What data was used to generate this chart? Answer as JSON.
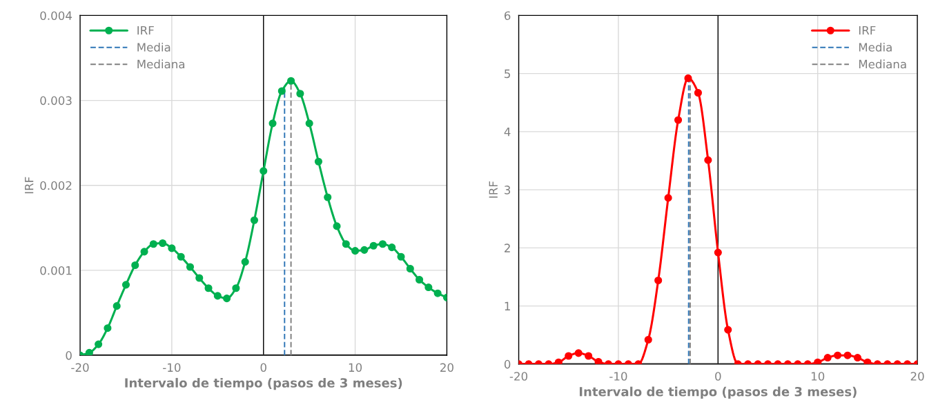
{
  "chart_data": [
    {
      "type": "line",
      "xlabel": "Intervalo de tiempo (pasos de 3 meses)",
      "ylabel": "IRF",
      "xlim": [
        -20,
        20
      ],
      "xticks": [
        -20,
        -10,
        0,
        10,
        20
      ],
      "ylim": [
        0,
        0.004
      ],
      "yticks": [
        0,
        0.001,
        0.002,
        0.003,
        0.004
      ],
      "grid": true,
      "legend": "top left",
      "ref_lines": [
        {
          "axis": "x",
          "value": 0,
          "color": "#000000"
        }
      ],
      "series": [
        {
          "name": "IRF",
          "color": "#00b050",
          "marker": "circle",
          "line_style": "solid",
          "x": [
            -20,
            -19,
            -18,
            -17,
            -16,
            -15,
            -14,
            -13,
            -12,
            -11,
            -10,
            -9,
            -8,
            -7,
            -6,
            -5,
            -4,
            -3,
            -2,
            -1,
            0,
            1,
            2,
            3,
            4,
            5,
            6,
            7,
            8,
            9,
            10,
            11,
            12,
            13,
            14,
            15,
            16,
            17,
            18,
            19,
            20
          ],
          "values": [
            0,
            3e-05,
            0.00013,
            0.00032,
            0.00058,
            0.00083,
            0.00106,
            0.00122,
            0.00131,
            0.00132,
            0.00126,
            0.00116,
            0.00104,
            0.00091,
            0.00079,
            0.0007,
            0.00067,
            0.00079,
            0.0011,
            0.00159,
            0.00217,
            0.00273,
            0.00311,
            0.00323,
            0.00308,
            0.00273,
            0.00228,
            0.00186,
            0.00152,
            0.00131,
            0.00123,
            0.00124,
            0.00129,
            0.00131,
            0.00127,
            0.00116,
            0.00102,
            0.00089,
            0.0008,
            0.00073,
            0.00068
          ]
        },
        {
          "name": "Media",
          "color": "#2e75b6",
          "marker": "none",
          "line_style": "dashed",
          "x": [
            2.3,
            2.3
          ],
          "values": [
            0,
            0.00314
          ]
        },
        {
          "name": "Mediana",
          "color": "#7f7f7f",
          "marker": "none",
          "line_style": "dashed",
          "x": [
            3.0,
            3.0
          ],
          "values": [
            0,
            0.00323
          ]
        }
      ]
    },
    {
      "type": "line",
      "xlabel": "Intervalo de tiempo (pasos de 3 meses)",
      "ylabel": "IRF",
      "xlim": [
        -20,
        20
      ],
      "xticks": [
        -20,
        -10,
        0,
        10,
        20
      ],
      "ylim": [
        0,
        6
      ],
      "yticks": [
        0,
        1,
        2,
        3,
        4,
        5,
        6
      ],
      "grid": true,
      "legend": "top right",
      "ref_lines": [
        {
          "axis": "x",
          "value": 0,
          "color": "#000000"
        }
      ],
      "series": [
        {
          "name": "IRF",
          "color": "#ff0000",
          "marker": "circle",
          "line_style": "solid",
          "x": [
            -20,
            -19,
            -18,
            -17,
            -16,
            -15,
            -14,
            -13,
            -12,
            -11,
            -10,
            -9,
            -8,
            -7,
            -6,
            -5,
            -4,
            -3,
            -2,
            -1,
            0,
            1,
            2,
            3,
            4,
            5,
            6,
            7,
            8,
            9,
            10,
            11,
            12,
            13,
            14,
            15,
            16,
            17,
            18,
            19,
            20
          ],
          "values": [
            0,
            0,
            0,
            0,
            0.03,
            0.14,
            0.19,
            0.14,
            0.04,
            0,
            0,
            0,
            0,
            0.42,
            1.44,
            2.86,
            4.2,
            4.92,
            4.67,
            3.51,
            1.92,
            0.59,
            0,
            0,
            0,
            0,
            0,
            0,
            0,
            0,
            0.03,
            0.11,
            0.15,
            0.15,
            0.11,
            0.03,
            0,
            0,
            0,
            0,
            0
          ]
        },
        {
          "name": "Media",
          "color": "#2e75b6",
          "marker": "none",
          "line_style": "dashed",
          "x": [
            -2.95,
            -2.95
          ],
          "values": [
            0,
            4.88
          ]
        },
        {
          "name": "Mediana",
          "color": "#7f7f7f",
          "marker": "none",
          "line_style": "dashed",
          "x": [
            -2.8,
            -2.8
          ],
          "values": [
            0,
            4.88
          ]
        }
      ]
    }
  ]
}
